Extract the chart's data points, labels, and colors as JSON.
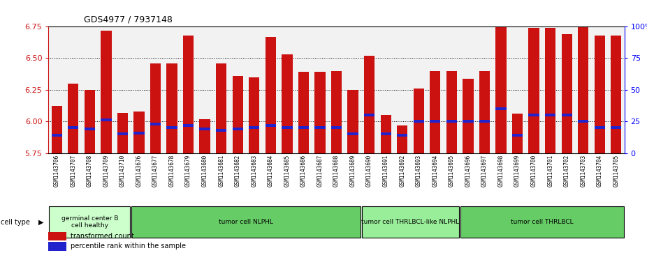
{
  "title": "GDS4977 / 7937148",
  "samples": [
    "GSM1143706",
    "GSM1143707",
    "GSM1143708",
    "GSM1143709",
    "GSM1143710",
    "GSM1143676",
    "GSM1143677",
    "GSM1143678",
    "GSM1143679",
    "GSM1143680",
    "GSM1143681",
    "GSM1143682",
    "GSM1143683",
    "GSM1143684",
    "GSM1143685",
    "GSM1143686",
    "GSM1143687",
    "GSM1143688",
    "GSM1143689",
    "GSM1143690",
    "GSM1143691",
    "GSM1143692",
    "GSM1143693",
    "GSM1143694",
    "GSM1143695",
    "GSM1143696",
    "GSM1143697",
    "GSM1143698",
    "GSM1143699",
    "GSM1143700",
    "GSM1143701",
    "GSM1143702",
    "GSM1143703",
    "GSM1143704",
    "GSM1143705"
  ],
  "red_values": [
    6.12,
    6.3,
    6.25,
    6.72,
    6.07,
    6.08,
    6.46,
    6.46,
    6.68,
    6.02,
    6.46,
    6.36,
    6.35,
    6.67,
    6.53,
    6.39,
    6.39,
    6.4,
    6.25,
    6.52,
    6.05,
    5.97,
    6.26,
    6.4,
    6.4,
    6.34,
    6.4,
    6.82,
    6.06,
    6.74,
    6.74,
    6.69,
    6.93,
    6.68,
    6.68
  ],
  "blue_percentiles": [
    14,
    20,
    19,
    26,
    15,
    16,
    23,
    20,
    22,
    19,
    18,
    19,
    20,
    22,
    20,
    20,
    20,
    20,
    15,
    30,
    15,
    14,
    25,
    25,
    25,
    25,
    25,
    35,
    14,
    30,
    30,
    30,
    25,
    20,
    20
  ],
  "ylim_left": [
    5.75,
    6.75
  ],
  "ylim_right": [
    0,
    100
  ],
  "y_ticks_left": [
    5.75,
    6.0,
    6.25,
    6.5,
    6.75
  ],
  "y_ticks_right": [
    0,
    25,
    50,
    75,
    100
  ],
  "bar_color": "#cc1111",
  "blue_color": "#2222cc",
  "plot_bg_color": "#f2f2f2",
  "xtick_bg_color": "#c8c8c8",
  "cell_groups": [
    {
      "label": "germinal center B\ncell healthy",
      "start": 0,
      "end": 5,
      "color": "#ccffcc"
    },
    {
      "label": "tumor cell NLPHL",
      "start": 5,
      "end": 19,
      "color": "#66cc66"
    },
    {
      "label": "tumor cell THRLBCL-like NLPHL",
      "start": 19,
      "end": 25,
      "color": "#99ee99"
    },
    {
      "label": "tumor cell THRLBCL",
      "start": 25,
      "end": 35,
      "color": "#66cc66"
    }
  ],
  "legend_red_label": "transformed count",
  "legend_blue_label": "percentile rank within the sample",
  "cell_type_label": "cell type"
}
